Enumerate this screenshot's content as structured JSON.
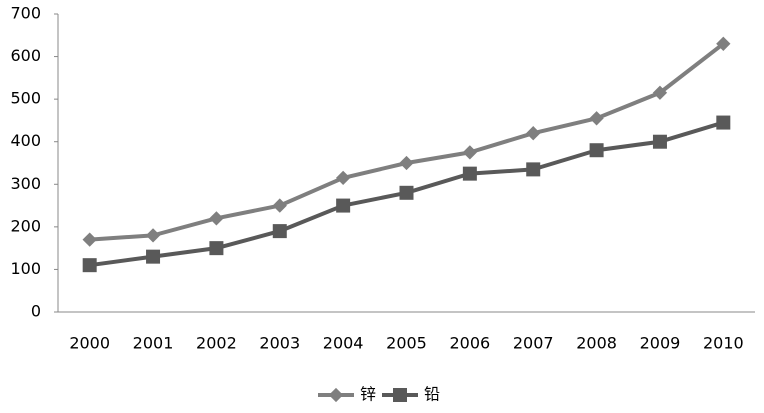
{
  "chart_data": {
    "type": "line",
    "categories": [
      "2000",
      "2001",
      "2002",
      "2003",
      "2004",
      "2005",
      "2006",
      "2007",
      "2008",
      "2009",
      "2010"
    ],
    "series": [
      {
        "name": "锌",
        "color": "#7f7f7f",
        "marker": "diamond",
        "values": [
          170,
          180,
          220,
          250,
          315,
          350,
          375,
          420,
          455,
          515,
          630
        ]
      },
      {
        "name": "铅",
        "color": "#595959",
        "marker": "square",
        "values": [
          110,
          130,
          150,
          190,
          250,
          280,
          325,
          335,
          380,
          400,
          445
        ]
      }
    ],
    "ylim": [
      0,
      700
    ],
    "yticks": [
      0,
      100,
      200,
      300,
      400,
      500,
      600,
      700
    ],
    "grid": false,
    "legend": "bottom"
  }
}
